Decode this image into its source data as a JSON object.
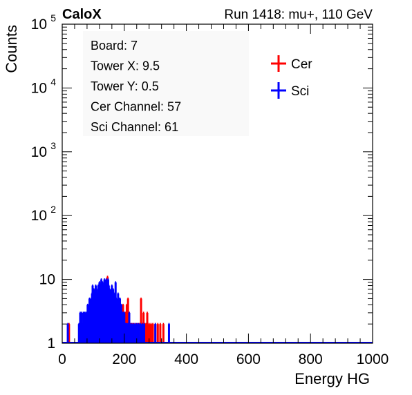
{
  "header": {
    "left": "CaloX",
    "right": "Run 1418: mu+, 110 GeV"
  },
  "chart_data": {
    "type": "histogram",
    "xlabel": "Energy HG",
    "ylabel": "Counts",
    "xlim": [
      0,
      1000
    ],
    "ylim": [
      1,
      100000
    ],
    "ylog": true,
    "grid": false,
    "legend_position": "top-right",
    "x_ticks": [
      "0",
      "200",
      "400",
      "600",
      "800",
      "1000"
    ],
    "y_ticks": [
      {
        "base": "1",
        "exp": ""
      },
      {
        "base": "10",
        "exp": ""
      },
      {
        "base": "10",
        "exp": "2"
      },
      {
        "base": "10",
        "exp": "3"
      },
      {
        "base": "10",
        "exp": "4"
      },
      {
        "base": "10",
        "exp": "5"
      }
    ],
    "info_box": [
      "Board: 7",
      "Tower X: 9.5",
      "Tower Y: 0.5",
      "Cer Channel: 57",
      "Sci Channel: 61"
    ],
    "series": [
      {
        "name": "Cer",
        "color": "#ff0000",
        "bin_width": 2,
        "points": [
          [
            22,
            2
          ],
          [
            78,
            2
          ],
          [
            86,
            2
          ],
          [
            92,
            3
          ],
          [
            96,
            3
          ],
          [
            100,
            4
          ],
          [
            104,
            5
          ],
          [
            108,
            6
          ],
          [
            110,
            4
          ],
          [
            114,
            5
          ],
          [
            118,
            6
          ],
          [
            122,
            4
          ],
          [
            126,
            6
          ],
          [
            130,
            5
          ],
          [
            134,
            5
          ],
          [
            136,
            6
          ],
          [
            138,
            8
          ],
          [
            140,
            6
          ],
          [
            142,
            9
          ],
          [
            144,
            7
          ],
          [
            146,
            11
          ],
          [
            148,
            6
          ],
          [
            150,
            5
          ],
          [
            152,
            6
          ],
          [
            156,
            4
          ],
          [
            160,
            5
          ],
          [
            164,
            3
          ],
          [
            168,
            4
          ],
          [
            172,
            3
          ],
          [
            176,
            3
          ],
          [
            182,
            2
          ],
          [
            188,
            2
          ],
          [
            192,
            3
          ],
          [
            196,
            4
          ],
          [
            200,
            3
          ],
          [
            204,
            3
          ],
          [
            208,
            4
          ],
          [
            212,
            5
          ],
          [
            216,
            3
          ],
          [
            220,
            2
          ],
          [
            224,
            2
          ],
          [
            230,
            2
          ],
          [
            236,
            2
          ],
          [
            242,
            2
          ],
          [
            248,
            2
          ],
          [
            254,
            5
          ],
          [
            258,
            2
          ],
          [
            262,
            3
          ],
          [
            266,
            2
          ],
          [
            270,
            2
          ],
          [
            274,
            3
          ],
          [
            280,
            2
          ],
          [
            286,
            2
          ],
          [
            292,
            2
          ],
          [
            300,
            2
          ],
          [
            308,
            2
          ],
          [
            316,
            2
          ],
          [
            326,
            2
          ]
        ]
      },
      {
        "name": "Sci",
        "color": "#0000ff",
        "bin_width": 2,
        "points": [
          [
            18,
            2
          ],
          [
            54,
            2
          ],
          [
            58,
            3
          ],
          [
            62,
            3
          ],
          [
            64,
            2
          ],
          [
            68,
            3
          ],
          [
            70,
            2
          ],
          [
            72,
            3
          ],
          [
            74,
            2
          ],
          [
            76,
            3
          ],
          [
            78,
            2
          ],
          [
            80,
            3
          ],
          [
            82,
            4
          ],
          [
            84,
            3
          ],
          [
            86,
            3
          ],
          [
            88,
            5
          ],
          [
            90,
            4
          ],
          [
            92,
            4
          ],
          [
            94,
            5
          ],
          [
            96,
            6
          ],
          [
            98,
            8
          ],
          [
            100,
            5
          ],
          [
            102,
            7
          ],
          [
            104,
            6
          ],
          [
            106,
            5
          ],
          [
            108,
            8
          ],
          [
            110,
            7
          ],
          [
            112,
            6
          ],
          [
            114,
            5
          ],
          [
            116,
            8
          ],
          [
            118,
            6
          ],
          [
            120,
            9
          ],
          [
            122,
            6
          ],
          [
            124,
            8
          ],
          [
            126,
            10
          ],
          [
            128,
            7
          ],
          [
            130,
            9
          ],
          [
            132,
            8
          ],
          [
            134,
            7
          ],
          [
            136,
            10
          ],
          [
            138,
            8
          ],
          [
            140,
            5
          ],
          [
            142,
            10
          ],
          [
            144,
            6
          ],
          [
            146,
            9
          ],
          [
            148,
            10
          ],
          [
            150,
            8
          ],
          [
            152,
            7
          ],
          [
            154,
            5
          ],
          [
            156,
            6
          ],
          [
            158,
            7
          ],
          [
            160,
            8
          ],
          [
            162,
            5
          ],
          [
            164,
            7
          ],
          [
            166,
            6
          ],
          [
            168,
            5
          ],
          [
            170,
            6
          ],
          [
            172,
            9
          ],
          [
            174,
            5
          ],
          [
            176,
            4
          ],
          [
            178,
            4
          ],
          [
            180,
            6
          ],
          [
            182,
            5
          ],
          [
            184,
            4
          ],
          [
            186,
            5
          ],
          [
            188,
            3
          ],
          [
            190,
            4
          ],
          [
            192,
            3
          ],
          [
            194,
            2
          ],
          [
            196,
            3
          ],
          [
            198,
            2
          ],
          [
            200,
            3
          ],
          [
            204,
            2
          ],
          [
            208,
            2
          ],
          [
            212,
            2
          ],
          [
            216,
            3
          ],
          [
            222,
            2
          ],
          [
            228,
            2
          ],
          [
            234,
            2
          ],
          [
            240,
            2
          ],
          [
            246,
            2
          ],
          [
            252,
            2
          ],
          [
            258,
            2
          ],
          [
            264,
            2
          ],
          [
            300,
            2
          ],
          [
            344,
            2
          ]
        ]
      }
    ]
  }
}
